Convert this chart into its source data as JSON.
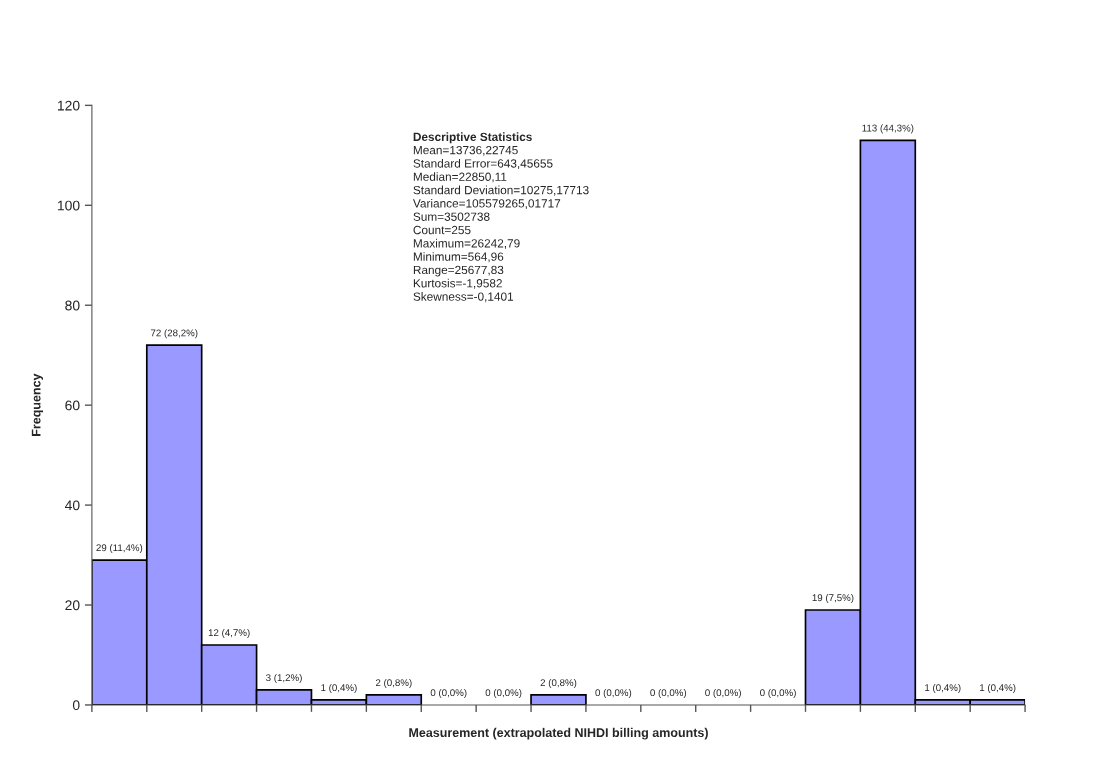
{
  "chart_data": {
    "type": "bar",
    "xlabel": "Measurement (extrapolated NIHDI billing amounts)",
    "ylabel": "Frequency",
    "categories": [
      null,
      null,
      null,
      null,
      null,
      null,
      null,
      null,
      null,
      null,
      null,
      null,
      null,
      null,
      null,
      null,
      null
    ],
    "values": [
      29,
      72,
      12,
      3,
      1,
      2,
      0,
      0,
      2,
      0,
      0,
      0,
      0,
      19,
      113,
      1,
      1
    ],
    "value_labels": [
      "29 (11,4%)",
      "72 (28,2%)",
      "12 (4,7%)",
      "3 (1,2%)",
      "1 (0,4%)",
      "2 (0,8%)",
      "0 (0,0%)",
      "0 (0,0%)",
      "2 (0,8%)",
      "0 (0,0%)",
      "0 (0,0%)",
      "0 (0,0%)",
      "0 (0,0%)",
      "19 (7,5%)",
      "113 (44,3%)",
      "1 (0,4%)",
      "1 (0,4%)"
    ],
    "color": "#9999ff",
    "ylim": [
      0,
      120
    ],
    "yticks": [
      0,
      20,
      40,
      60,
      80,
      100,
      120
    ],
    "tick_labels": "y",
    "grid": false,
    "legend": false,
    "annotations": [
      "Descriptive Statistics",
      "Mean=13736,22745",
      "Standard Error=643,45655",
      "Median=22850,11",
      "Standard Deviation=10275,17713",
      "Variance=105579265,01717",
      "Sum=3502738",
      "Count=255",
      "Maximum=26242,79",
      "Minimum=564,96",
      "Range=25677,83",
      "Kurtosis=-1,9582",
      "Skewness=-0,1401"
    ]
  }
}
